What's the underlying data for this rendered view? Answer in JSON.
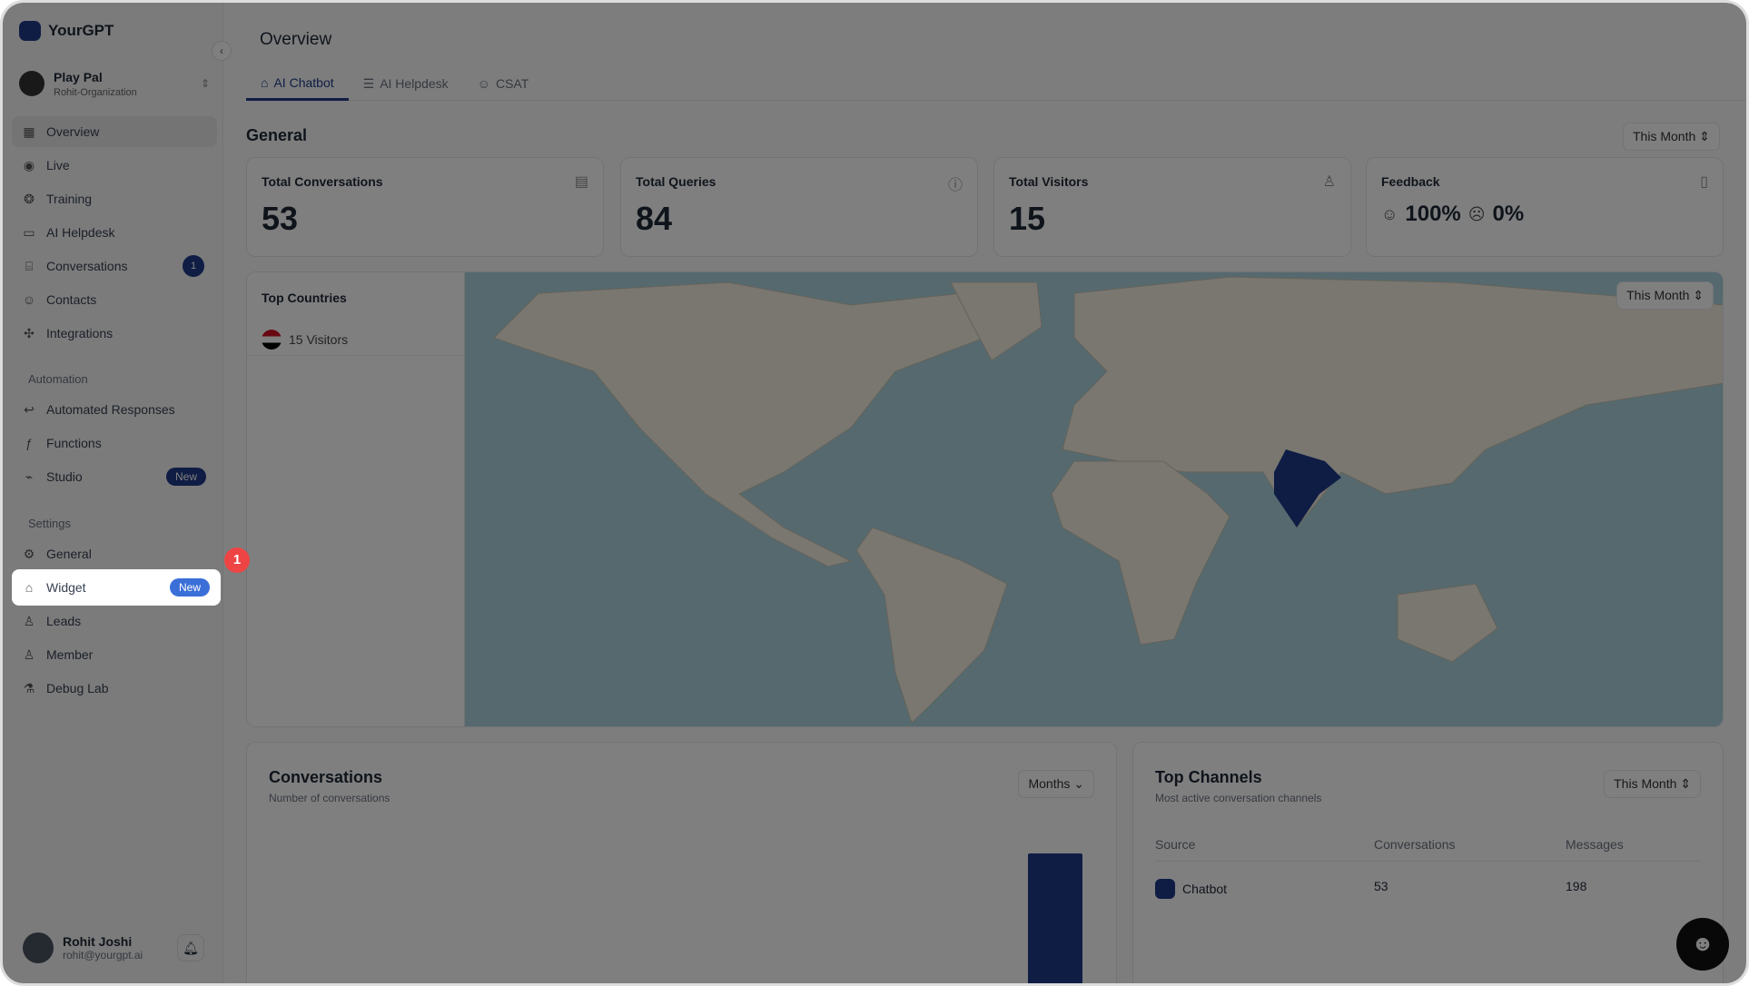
{
  "brand": "YourGPT",
  "org": {
    "name": "Play Pal",
    "sub": "Rohit-Organization"
  },
  "nav": [
    {
      "label": "Overview",
      "icon": "layout-icon"
    },
    {
      "label": "Live",
      "icon": "broadcast-icon"
    },
    {
      "label": "Training",
      "icon": "brain-icon"
    },
    {
      "label": "AI Helpdesk",
      "icon": "book-icon"
    },
    {
      "label": "Conversations",
      "icon": "chat-icon",
      "badge": "1"
    },
    {
      "label": "Contacts",
      "icon": "contact-icon"
    },
    {
      "label": "Integrations",
      "icon": "puzzle-icon"
    }
  ],
  "automation": {
    "title": "Automation",
    "items": [
      {
        "label": "Automated Responses",
        "icon": "reply-icon"
      },
      {
        "label": "Functions",
        "icon": "function-icon"
      },
      {
        "label": "Studio",
        "icon": "flow-icon",
        "badge": "New"
      }
    ]
  },
  "settings": {
    "title": "Settings",
    "items": [
      {
        "label": "General",
        "icon": "gear-icon"
      },
      {
        "label": "Widget",
        "icon": "robot-icon",
        "badge": "New"
      },
      {
        "label": "Leads",
        "icon": "user-check-icon"
      },
      {
        "label": "Member",
        "icon": "users-icon"
      },
      {
        "label": "Debug Lab",
        "icon": "flask-icon"
      }
    ]
  },
  "user": {
    "name": "Rohit Joshi",
    "email": "rohit@yourgpt.ai"
  },
  "tutorial_step": "1",
  "page": {
    "title": "Overview",
    "tabs": [
      "AI Chatbot",
      "AI Helpdesk",
      "CSAT"
    ],
    "general": "General",
    "range": "This Month"
  },
  "stats": [
    {
      "label": "Total Conversations",
      "value": "53"
    },
    {
      "label": "Total Queries",
      "value": "84"
    },
    {
      "label": "Total Visitors",
      "value": "15"
    },
    {
      "label": "Feedback",
      "positive": "100%",
      "negative": "0%"
    }
  ],
  "countries": {
    "title": "Top Countries",
    "rows": [
      {
        "label": "15 Visitors"
      }
    ],
    "range": "This Month",
    "highlighted": "India",
    "highlight_color": "#1e3a8a"
  },
  "conversations": {
    "title": "Conversations",
    "subtitle": "Number of conversations",
    "period": "Months"
  },
  "channels": {
    "title": "Top Channels",
    "subtitle": "Most active conversation channels",
    "range": "This Month",
    "columns": [
      "Source",
      "Conversations",
      "Messages"
    ],
    "rows": [
      {
        "source": "Chatbot",
        "conversations": "53",
        "messages": "198"
      }
    ]
  },
  "colors": {
    "accent": "#1e3a8a",
    "badge_new": "#3b6fd8",
    "step": "#ef4444"
  }
}
